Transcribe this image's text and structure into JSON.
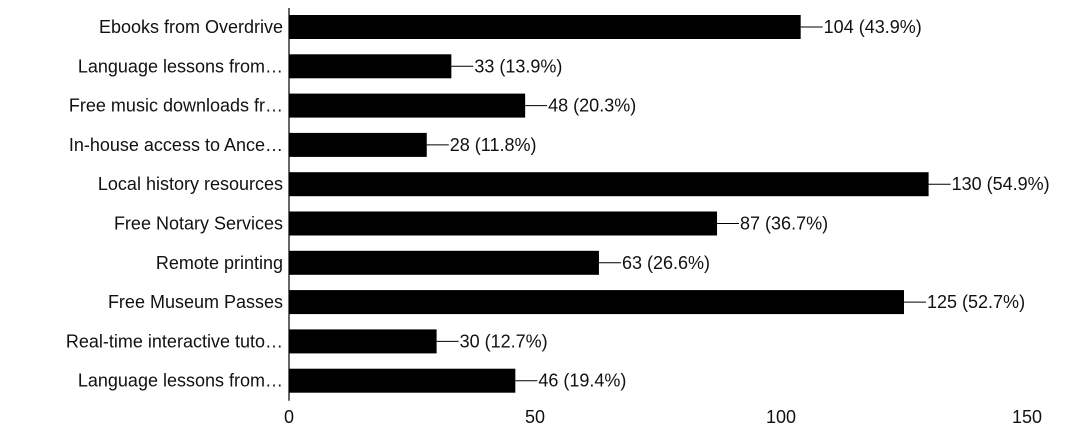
{
  "chart_data": {
    "type": "bar",
    "orientation": "horizontal",
    "title": "",
    "xlabel": "",
    "ylabel": "",
    "categories": [
      "Ebooks from Overdrive",
      "Language lessons from…",
      "Free music downloads fr…",
      "In-house access to Ance…",
      "Local history resources",
      "Free Notary Services",
      "Remote printing",
      "Free Museum Passes",
      "Real-time interactive tuto…",
      "Language lessons from…"
    ],
    "values": [
      104,
      33,
      48,
      28,
      130,
      87,
      63,
      125,
      30,
      46
    ],
    "data_labels": [
      "104 (43.9%)",
      "33 (13.9%)",
      "48 (20.3%)",
      "28 (11.8%)",
      "130 (54.9%)",
      "87 (36.7%)",
      "63 (26.6%)",
      "125 (52.7%)",
      "30 (12.7%)",
      "46 (19.4%)"
    ],
    "xlim": [
      0,
      150
    ],
    "xticks": [
      0,
      50,
      100,
      150
    ],
    "xtick_labels": [
      "0",
      "50",
      "100",
      "150"
    ],
    "grid": false,
    "legend": "none",
    "bar_color": "#000000"
  }
}
